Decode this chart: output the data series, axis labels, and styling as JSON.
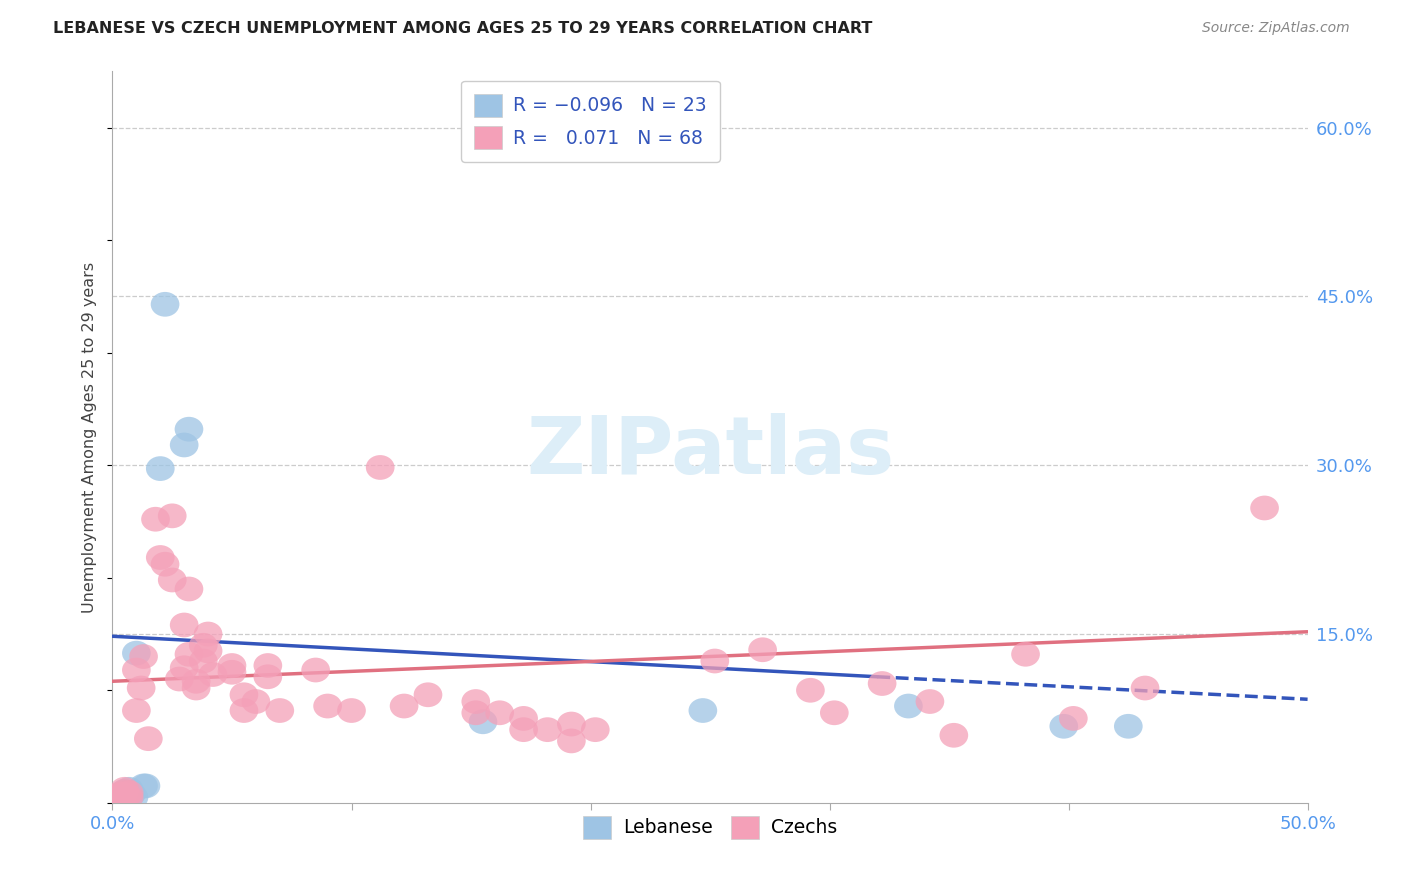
{
  "title": "LEBANESE VS CZECH UNEMPLOYMENT AMONG AGES 25 TO 29 YEARS CORRELATION CHART",
  "source": "Source: ZipAtlas.com",
  "ylabel": "Unemployment Among Ages 25 to 29 years",
  "xlim": [
    0,
    0.5
  ],
  "ylim": [
    0,
    0.65
  ],
  "ytick_vals": [
    0.15,
    0.3,
    0.45,
    0.6
  ],
  "ytick_labels": [
    "15.0%",
    "30.0%",
    "45.0%",
    "60.0%"
  ],
  "xtick_vals": [
    0.0,
    0.5
  ],
  "xtick_labels": [
    "0.0%",
    "50.0%"
  ],
  "grid_color": "#cccccc",
  "bg_color": "#ffffff",
  "blue_fill": "#9ec4e4",
  "pink_fill": "#f4a0b8",
  "blue_line": "#3355bb",
  "pink_line": "#e07080",
  "ytick_color": "#5599ee",
  "xtick_color": "#5599ee",
  "watermark_color": "#ddeef8",
  "lebanese_pts": [
    [
      0.002,
      0.004
    ],
    [
      0.003,
      0.007
    ],
    [
      0.003,
      0.005
    ],
    [
      0.004,
      0.003
    ],
    [
      0.005,
      0.006
    ],
    [
      0.005,
      0.01
    ],
    [
      0.006,
      0.005
    ],
    [
      0.007,
      0.009
    ],
    [
      0.007,
      0.012
    ],
    [
      0.008,
      0.008
    ],
    [
      0.009,
      0.005
    ],
    [
      0.01,
      0.133
    ],
    [
      0.013,
      0.015
    ],
    [
      0.014,
      0.015
    ],
    [
      0.02,
      0.297
    ],
    [
      0.022,
      0.443
    ],
    [
      0.03,
      0.318
    ],
    [
      0.032,
      0.332
    ],
    [
      0.155,
      0.072
    ],
    [
      0.247,
      0.082
    ],
    [
      0.333,
      0.086
    ],
    [
      0.398,
      0.068
    ],
    [
      0.425,
      0.068
    ]
  ],
  "czech_pts": [
    [
      0.001,
      0.005
    ],
    [
      0.002,
      0.004
    ],
    [
      0.003,
      0.003
    ],
    [
      0.003,
      0.007
    ],
    [
      0.004,
      0.004
    ],
    [
      0.004,
      0.008
    ],
    [
      0.005,
      0.01
    ],
    [
      0.005,
      0.012
    ],
    [
      0.006,
      0.006
    ],
    [
      0.007,
      0.005
    ],
    [
      0.007,
      0.009
    ],
    [
      0.01,
      0.082
    ],
    [
      0.01,
      0.118
    ],
    [
      0.012,
      0.102
    ],
    [
      0.013,
      0.13
    ],
    [
      0.015,
      0.057
    ],
    [
      0.018,
      0.252
    ],
    [
      0.02,
      0.218
    ],
    [
      0.022,
      0.212
    ],
    [
      0.025,
      0.198
    ],
    [
      0.025,
      0.255
    ],
    [
      0.028,
      0.11
    ],
    [
      0.03,
      0.12
    ],
    [
      0.03,
      0.158
    ],
    [
      0.032,
      0.19
    ],
    [
      0.032,
      0.132
    ],
    [
      0.035,
      0.102
    ],
    [
      0.035,
      0.108
    ],
    [
      0.038,
      0.14
    ],
    [
      0.038,
      0.126
    ],
    [
      0.04,
      0.135
    ],
    [
      0.04,
      0.15
    ],
    [
      0.042,
      0.114
    ],
    [
      0.05,
      0.116
    ],
    [
      0.05,
      0.122
    ],
    [
      0.055,
      0.082
    ],
    [
      0.055,
      0.096
    ],
    [
      0.06,
      0.09
    ],
    [
      0.065,
      0.112
    ],
    [
      0.065,
      0.122
    ],
    [
      0.07,
      0.082
    ],
    [
      0.085,
      0.118
    ],
    [
      0.09,
      0.086
    ],
    [
      0.1,
      0.082
    ],
    [
      0.112,
      0.298
    ],
    [
      0.122,
      0.086
    ],
    [
      0.132,
      0.096
    ],
    [
      0.152,
      0.08
    ],
    [
      0.152,
      0.09
    ],
    [
      0.162,
      0.08
    ],
    [
      0.172,
      0.065
    ],
    [
      0.172,
      0.075
    ],
    [
      0.182,
      0.065
    ],
    [
      0.192,
      0.055
    ],
    [
      0.192,
      0.07
    ],
    [
      0.202,
      0.065
    ],
    [
      0.252,
      0.126
    ],
    [
      0.272,
      0.136
    ],
    [
      0.292,
      0.1
    ],
    [
      0.302,
      0.08
    ],
    [
      0.322,
      0.106
    ],
    [
      0.342,
      0.09
    ],
    [
      0.352,
      0.06
    ],
    [
      0.382,
      0.132
    ],
    [
      0.402,
      0.075
    ],
    [
      0.432,
      0.102
    ],
    [
      0.482,
      0.262
    ]
  ],
  "leb_line_solid": [
    [
      0.0,
      0.148
    ],
    [
      0.32,
      0.112
    ]
  ],
  "leb_line_dash": [
    [
      0.32,
      0.112
    ],
    [
      0.5,
      0.092
    ]
  ],
  "czech_line": [
    [
      0.0,
      0.108
    ],
    [
      0.5,
      0.152
    ]
  ],
  "marker_size": 130,
  "marker_aspect": 0.65
}
